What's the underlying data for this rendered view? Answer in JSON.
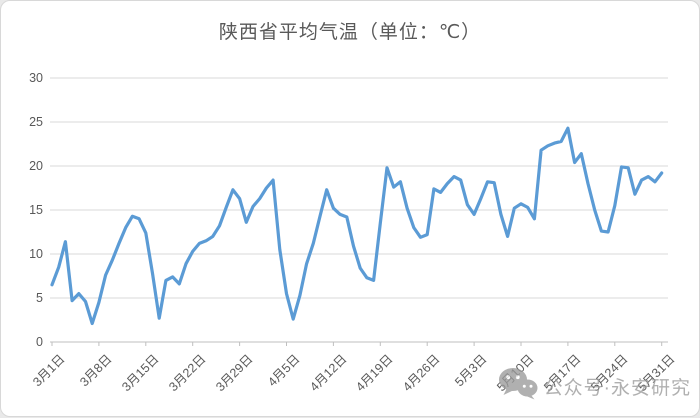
{
  "title": "陕西省平均气温（单位：℃）",
  "watermark": {
    "icon": "wechat-icon",
    "text": "公众号·永安研究"
  },
  "colors": {
    "line": "#5B9BD5",
    "grid": "#D9D9D9",
    "axis": "#BFBFBF",
    "text": "#595959",
    "watermark": "#9B9B9B",
    "card_bg": "#FFFFFF",
    "card_border": "#D8D8D8",
    "page_bg": "#E9E9E9"
  },
  "chart_data": {
    "type": "line",
    "title": "陕西省平均气温（单位：℃）",
    "ylabel": "",
    "xlabel": "",
    "ylim": [
      0,
      30
    ],
    "y_ticks": [
      0,
      5,
      10,
      15,
      20,
      25,
      30
    ],
    "grid": "horizontal",
    "legend": "none",
    "x_tick_every": 7,
    "x_tick_labels": [
      "3月1日",
      "3月8日",
      "3月15日",
      "3月22日",
      "3月29日",
      "4月5日",
      "4月12日",
      "4月19日",
      "4月26日",
      "5月3日",
      "5月10日",
      "5月17日",
      "5月24日",
      "5月31日"
    ],
    "x": [
      "3月1日",
      "3月2日",
      "3月3日",
      "3月4日",
      "3月5日",
      "3月6日",
      "3月7日",
      "3月8日",
      "3月9日",
      "3月10日",
      "3月11日",
      "3月12日",
      "3月13日",
      "3月14日",
      "3月15日",
      "3月16日",
      "3月17日",
      "3月18日",
      "3月19日",
      "3月20日",
      "3月21日",
      "3月22日",
      "3月23日",
      "3月24日",
      "3月25日",
      "3月26日",
      "3月27日",
      "3月28日",
      "3月29日",
      "3月30日",
      "3月31日",
      "4月1日",
      "4月2日",
      "4月3日",
      "4月4日",
      "4月5日",
      "4月6日",
      "4月7日",
      "4月8日",
      "4月9日",
      "4月10日",
      "4月11日",
      "4月12日",
      "4月13日",
      "4月14日",
      "4月15日",
      "4月16日",
      "4月17日",
      "4月18日",
      "4月19日",
      "4月20日",
      "4月21日",
      "4月22日",
      "4月23日",
      "4月24日",
      "4月25日",
      "4月26日",
      "4月27日",
      "4月28日",
      "4月29日",
      "4月30日",
      "5月1日",
      "5月2日",
      "5月3日",
      "5月4日",
      "5月5日",
      "5月6日",
      "5月7日",
      "5月8日",
      "5月9日",
      "5月10日",
      "5月11日",
      "5月12日",
      "5月13日",
      "5月14日",
      "5月15日",
      "5月16日",
      "5月17日",
      "5月18日",
      "5月19日",
      "5月20日",
      "5月21日",
      "5月22日",
      "5月23日",
      "5月24日",
      "5月25日",
      "5月26日",
      "5月27日",
      "5月28日",
      "5月29日",
      "5月30日",
      "5月31日"
    ],
    "values": [
      6.5,
      8.5,
      11.4,
      4.7,
      5.5,
      4.6,
      2.1,
      4.5,
      7.6,
      9.3,
      11.2,
      13.0,
      14.3,
      14.0,
      12.4,
      7.8,
      2.7,
      7.0,
      7.4,
      6.6,
      8.9,
      10.3,
      11.2,
      11.5,
      12.0,
      13.2,
      15.3,
      17.3,
      16.3,
      13.6,
      15.4,
      16.3,
      17.5,
      18.4,
      10.5,
      5.5,
      2.6,
      5.3,
      8.9,
      11.2,
      14.3,
      17.3,
      15.2,
      14.5,
      14.2,
      10.9,
      8.4,
      7.3,
      7.0,
      13.5,
      19.8,
      17.6,
      18.2,
      15.2,
      13.0,
      11.9,
      12.2,
      17.4,
      17.0,
      18.0,
      18.8,
      18.4,
      15.6,
      14.5,
      16.3,
      18.2,
      18.1,
      14.5,
      12.0,
      15.2,
      15.7,
      15.3,
      14.0,
      21.8,
      22.3,
      22.6,
      22.8,
      24.3,
      20.4,
      21.4,
      18.0,
      15.0,
      12.6,
      12.5,
      15.5,
      19.9,
      19.8,
      16.8,
      18.4,
      18.8,
      18.2,
      19.2
    ]
  }
}
